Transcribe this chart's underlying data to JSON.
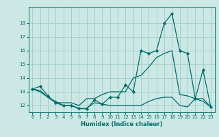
{
  "xlabel": "Humidex (Indice chaleur)",
  "bg_color": "#cce8e4",
  "grid_color": "#99cccc",
  "line_color": "#006b6b",
  "xlim": [
    -0.5,
    23.5
  ],
  "ylim": [
    11.5,
    19.2
  ],
  "xticks": [
    0,
    1,
    2,
    3,
    4,
    5,
    6,
    7,
    8,
    9,
    10,
    11,
    12,
    13,
    14,
    15,
    16,
    17,
    18,
    19,
    20,
    21,
    22,
    23
  ],
  "yticks": [
    12,
    13,
    14,
    15,
    16,
    17,
    18
  ],
  "line1_x": [
    0,
    1,
    2,
    3,
    4,
    5,
    6,
    7,
    8,
    9,
    10,
    11,
    12,
    13,
    14,
    15,
    16,
    17,
    18,
    19,
    20,
    21,
    22,
    23
  ],
  "line1_y": [
    13.2,
    13.4,
    12.7,
    12.2,
    12.0,
    12.0,
    11.8,
    11.75,
    12.4,
    12.1,
    12.6,
    12.6,
    13.5,
    13.0,
    16.0,
    15.8,
    16.0,
    18.0,
    18.7,
    16.0,
    15.8,
    12.5,
    14.6,
    11.9
  ],
  "line2_x": [
    0,
    1,
    2,
    3,
    4,
    5,
    6,
    7,
    8,
    9,
    10,
    11,
    12,
    13,
    14,
    15,
    16,
    17,
    18,
    19,
    20,
    21,
    22,
    23
  ],
  "line2_y": [
    13.2,
    13.1,
    12.6,
    12.2,
    12.2,
    12.2,
    12.0,
    12.5,
    12.5,
    12.8,
    13.0,
    13.0,
    13.0,
    14.0,
    14.2,
    14.8,
    15.5,
    15.8,
    16.0,
    12.8,
    12.7,
    12.5,
    12.5,
    11.9
  ],
  "line3_x": [
    0,
    1,
    2,
    3,
    4,
    5,
    6,
    7,
    8,
    9,
    10,
    11,
    12,
    13,
    14,
    15,
    16,
    17,
    18,
    19,
    20,
    21,
    22,
    23
  ],
  "line3_y": [
    13.2,
    13.0,
    12.6,
    12.3,
    12.0,
    12.0,
    11.75,
    11.8,
    12.2,
    12.1,
    12.0,
    12.0,
    12.0,
    12.0,
    12.0,
    12.3,
    12.5,
    12.6,
    12.6,
    12.0,
    11.9,
    12.5,
    12.3,
    11.9
  ]
}
